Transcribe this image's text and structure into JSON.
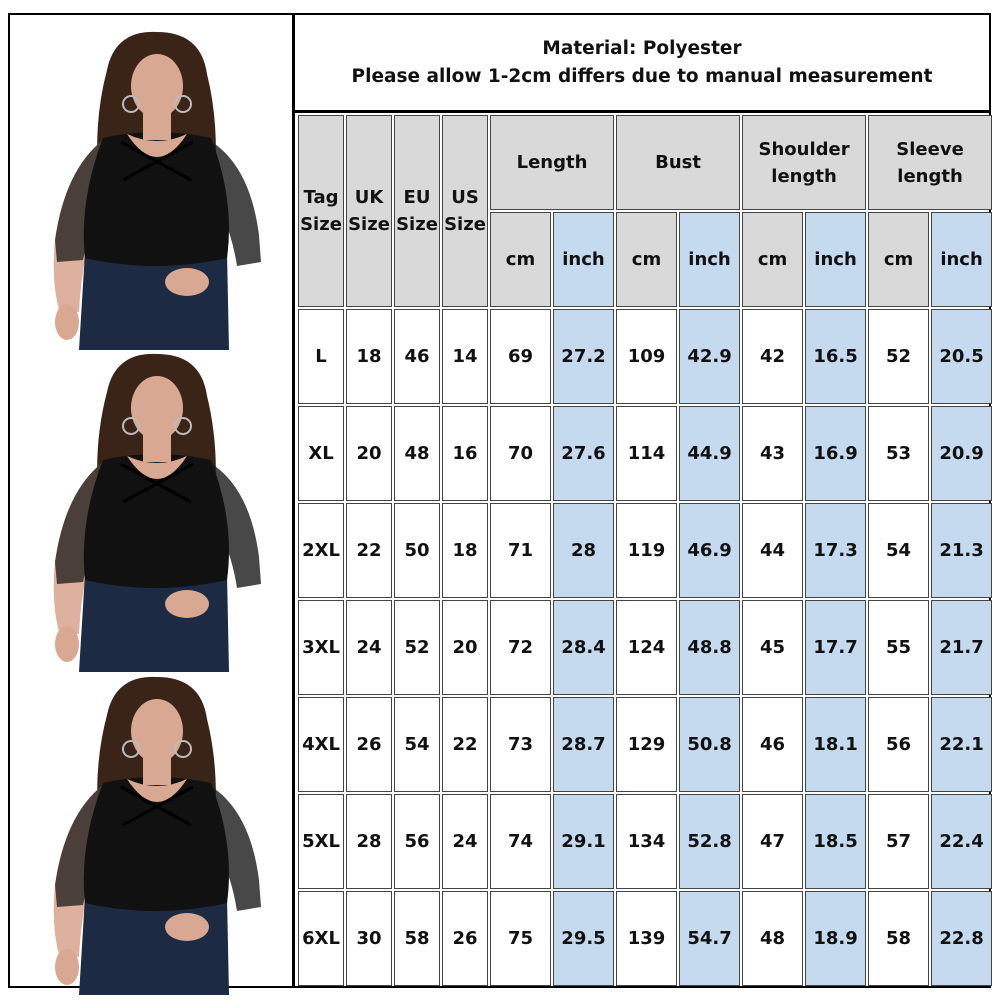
{
  "header": {
    "material": "Material: Polyester",
    "note": "Please allow 1-2cm differs due to manual measurement"
  },
  "columns": {
    "tag": [
      "Tag",
      "Size"
    ],
    "uk": [
      "UK",
      "Size"
    ],
    "eu": [
      "EU",
      "Size"
    ],
    "us": [
      "US",
      "Size"
    ],
    "length": "Length",
    "bust": "Bust",
    "shoulder": [
      "Shoulder",
      "length"
    ],
    "sleeve": [
      "Sleeve",
      "length"
    ],
    "cm": "cm",
    "inch": "inch"
  },
  "rows": [
    {
      "tag": "L",
      "uk": "18",
      "eu": "46",
      "us": "14",
      "len_cm": "69",
      "len_in": "27.2",
      "bust_cm": "109",
      "bust_in": "42.9",
      "sh_cm": "42",
      "sh_in": "16.5",
      "sl_cm": "52",
      "sl_in": "20.5"
    },
    {
      "tag": "XL",
      "uk": "20",
      "eu": "48",
      "us": "16",
      "len_cm": "70",
      "len_in": "27.6",
      "bust_cm": "114",
      "bust_in": "44.9",
      "sh_cm": "43",
      "sh_in": "16.9",
      "sl_cm": "53",
      "sl_in": "20.9"
    },
    {
      "tag": "2XL",
      "uk": "22",
      "eu": "50",
      "us": "18",
      "len_cm": "71",
      "len_in": "28",
      "bust_cm": "119",
      "bust_in": "46.9",
      "sh_cm": "44",
      "sh_in": "17.3",
      "sl_cm": "54",
      "sl_in": "21.3"
    },
    {
      "tag": "3XL",
      "uk": "24",
      "eu": "52",
      "us": "20",
      "len_cm": "72",
      "len_in": "28.4",
      "bust_cm": "124",
      "bust_in": "48.8",
      "sh_cm": "45",
      "sh_in": "17.7",
      "sl_cm": "55",
      "sl_in": "21.7"
    },
    {
      "tag": "4XL",
      "uk": "26",
      "eu": "54",
      "us": "22",
      "len_cm": "73",
      "len_in": "28.7",
      "bust_cm": "129",
      "bust_in": "50.8",
      "sh_cm": "46",
      "sh_in": "18.1",
      "sl_cm": "56",
      "sl_in": "22.1"
    },
    {
      "tag": "5XL",
      "uk": "28",
      "eu": "56",
      "us": "24",
      "len_cm": "74",
      "len_in": "29.1",
      "bust_cm": "134",
      "bust_in": "52.8",
      "sh_cm": "47",
      "sh_in": "18.5",
      "sl_cm": "57",
      "sl_in": "22.4"
    },
    {
      "tag": "6XL",
      "uk": "30",
      "eu": "58",
      "us": "26",
      "len_cm": "75",
      "len_in": "29.5",
      "bust_cm": "139",
      "bust_in": "54.7",
      "sh_cm": "48",
      "sh_in": "18.9",
      "sl_cm": "58",
      "sl_in": "22.8"
    }
  ],
  "colors": {
    "header_grey": "#d9d9d9",
    "inch_blue": "#c5d9ef",
    "garment_black": "#111111",
    "denim": "#1d2a44",
    "hair": "#3a2418",
    "skin": "#d9a892"
  },
  "images": {
    "model_photo": "woman-wearing-black-mesh-sleeve-bodysuit-and-jeans"
  }
}
